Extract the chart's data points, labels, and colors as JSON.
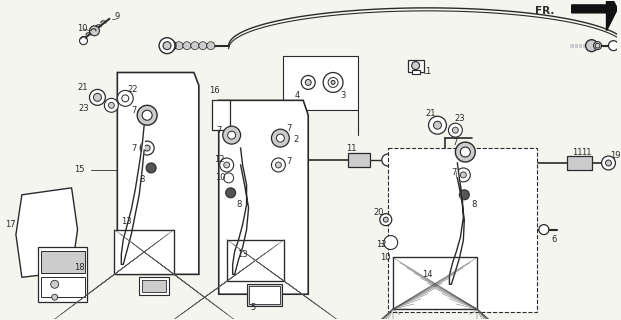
{
  "bg_color": "#f5f5f0",
  "line_color": "#2a2a2a",
  "fig_width": 6.21,
  "fig_height": 3.2,
  "dpi": 100
}
